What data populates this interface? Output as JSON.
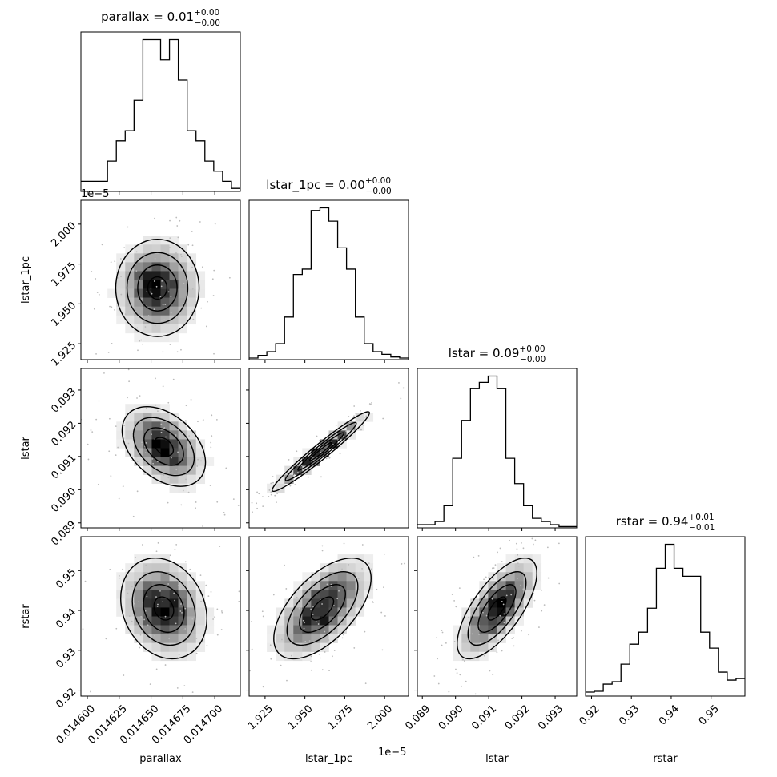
{
  "chart_data": {
    "type": "corner",
    "params": [
      {
        "name": "parallax",
        "label": "parallax",
        "title": {
          "base": "parallax = 0.01",
          "sup": "+0.00",
          "sub": "−0.00"
        },
        "range": [
          0.014595,
          0.01472
        ],
        "ticks": [
          0.0146,
          0.014625,
          0.01465,
          0.014675,
          0.0147
        ],
        "tick_labels": [
          "0.014600",
          "0.014625",
          "0.014650",
          "0.014675",
          "0.014700"
        ],
        "hist": [
          1,
          1,
          1,
          3,
          5,
          6,
          9,
          15,
          15,
          13,
          15,
          11,
          6,
          5,
          3,
          2,
          1,
          0.3
        ],
        "offset": ""
      },
      {
        "name": "lstar_1pc",
        "label": "lstar_1pc",
        "title": {
          "base": "lstar_1pc = 0.00",
          "sup": "+0.00",
          "sub": "−0.00"
        },
        "range": [
          1.915,
          2.015
        ],
        "ticks": [
          1.925,
          1.95,
          1.975,
          2.0
        ],
        "tick_labels": [
          "1.925",
          "1.950",
          "1.975",
          "2.000"
        ],
        "hist": [
          0.3,
          0.8,
          1.5,
          3,
          8,
          16,
          17,
          28,
          28.5,
          26,
          21,
          17,
          8,
          3,
          1.5,
          1,
          0.5,
          0.3
        ],
        "offset": "1e−5"
      },
      {
        "name": "lstar",
        "label": "lstar",
        "title": {
          "base": "lstar = 0.09",
          "sup": "+0.00",
          "sub": "−0.00"
        },
        "range": [
          0.08885,
          0.09365
        ],
        "ticks": [
          0.089,
          0.09,
          0.091,
          0.092,
          0.093
        ],
        "tick_labels": [
          "0.089",
          "0.090",
          "0.091",
          "0.092",
          "0.093"
        ],
        "hist": [
          0.5,
          0.5,
          1,
          3.5,
          11,
          17,
          22,
          23,
          24,
          22,
          11,
          7,
          3.5,
          1.5,
          1,
          0.5,
          0.2,
          0.2
        ],
        "offset": ""
      },
      {
        "name": "rstar",
        "label": "rstar",
        "title": {
          "base": "rstar = 0.94",
          "sup": "+0.01",
          "sub": "−0.01"
        },
        "range": [
          0.9185,
          0.9585
        ],
        "ticks": [
          0.92,
          0.93,
          0.94,
          0.95
        ],
        "tick_labels": [
          "0.92",
          "0.93",
          "0.94",
          "0.95"
        ],
        "hist": [
          0.5,
          0.6,
          1.5,
          1.8,
          4,
          6.5,
          8,
          11,
          16,
          19,
          16,
          15,
          15,
          8,
          6,
          3,
          2,
          2.2
        ],
        "offset": ""
      }
    ],
    "pairs": [
      {
        "x": 0,
        "y": 1,
        "cx": 0.014655,
        "cy": 1.96,
        "sx": 1.5e-05,
        "sy": 0.014,
        "rho": 0.0
      },
      {
        "x": 0,
        "y": 2,
        "cx": 0.01466,
        "cy": 0.0913,
        "sx": 1.5e-05,
        "sy": 0.00055,
        "rho": -0.4
      },
      {
        "x": 1,
        "y": 2,
        "cx": 1.96,
        "cy": 0.09115,
        "sx": 0.014,
        "sy": 0.00055,
        "rho": 0.97
      },
      {
        "x": 0,
        "y": 3,
        "cx": 0.01466,
        "cy": 0.9405,
        "sx": 1.55e-05,
        "sy": 0.0058,
        "rho": -0.2
      },
      {
        "x": 1,
        "y": 3,
        "cx": 1.961,
        "cy": 0.9405,
        "sx": 0.014,
        "sy": 0.0058,
        "rho": 0.6
      },
      {
        "x": 2,
        "y": 3,
        "cx": 0.09125,
        "cy": 0.9405,
        "sx": 0.00055,
        "sy": 0.0058,
        "rho": 0.7
      }
    ]
  }
}
